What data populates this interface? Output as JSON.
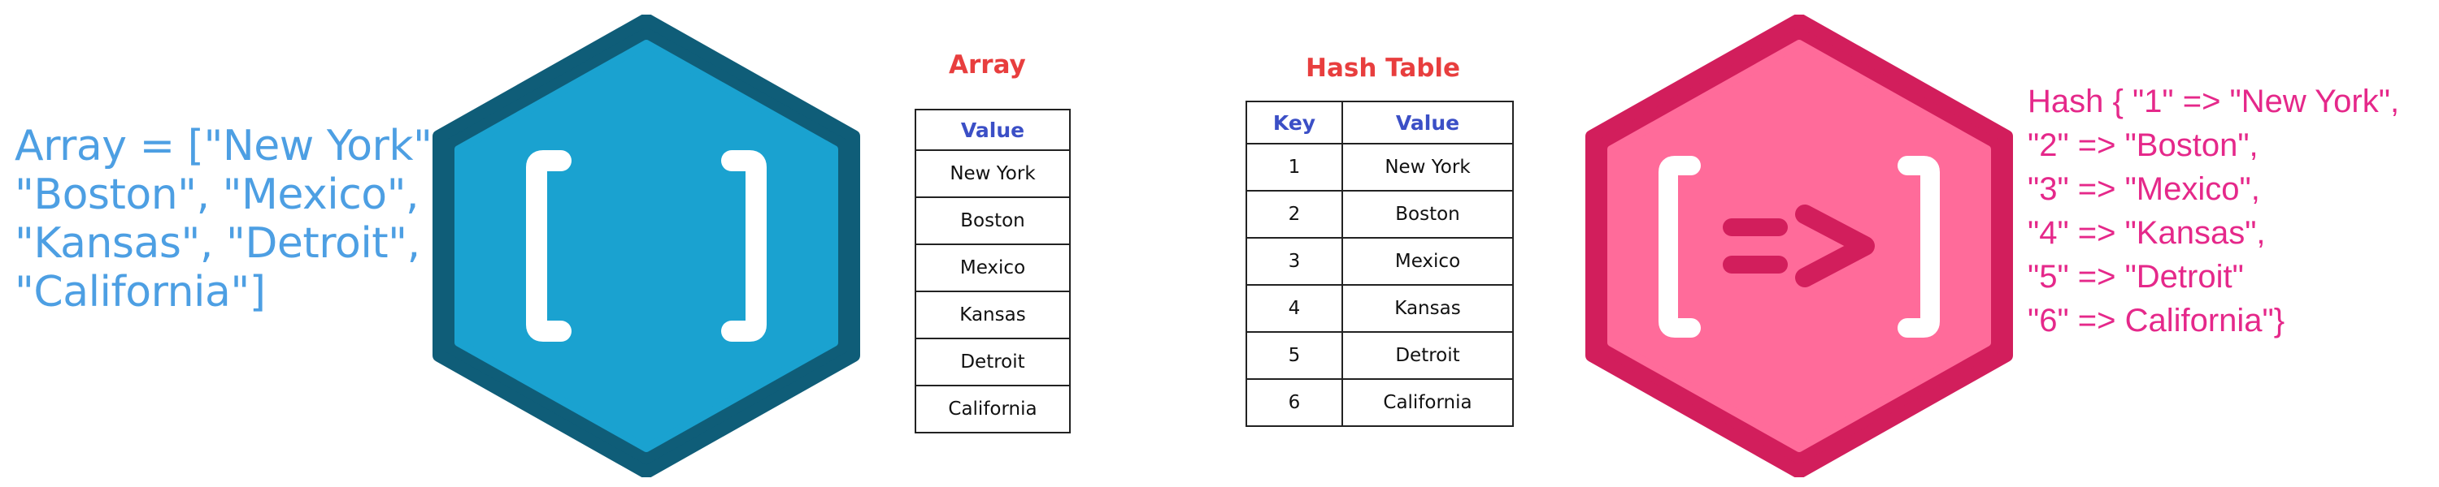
{
  "array_code": {
    "lines": [
      "Array = [\"New York\",",
      "\"Boston\", \"Mexico\",",
      "\"Kansas\", \"Detroit\",",
      "\"California\"]"
    ]
  },
  "hash_code": {
    "lines": [
      "Hash { \"1\" => \"New York\",",
      "\"2\" => \"Boston\",",
      "\"3\" => \"Mexico\",",
      "\"4\" => \"Kansas\",",
      "\"5\" => \"Detroit\"",
      "\"6\" => California\"}"
    ]
  },
  "array_icon": {
    "name": "array-brackets-icon",
    "symbol": "[ ]",
    "fill": "#1aa2d0",
    "border": "#0f5d78"
  },
  "hash_icon": {
    "name": "hash-brackets-icon",
    "symbol": "[=>]",
    "fill": "#ff6b9a",
    "border": "#d21e5c"
  },
  "array_table": {
    "title": "Array",
    "header": "Value",
    "rows": [
      "New York",
      "Boston",
      "Mexico",
      "Kansas",
      "Detroit",
      "California"
    ]
  },
  "hash_table": {
    "title": "Hash Table",
    "headers": [
      "Key",
      "Value"
    ],
    "rows": [
      {
        "key": "1",
        "value": "New York"
      },
      {
        "key": "2",
        "value": "Boston"
      },
      {
        "key": "3",
        "value": "Mexico"
      },
      {
        "key": "4",
        "value": "Kansas"
      },
      {
        "key": "5",
        "value": "Detroit"
      },
      {
        "key": "6",
        "value": "California"
      }
    ]
  },
  "colors": {
    "title_red": "#e83e3e",
    "header_blue": "#3b4fc6",
    "array_text_blue": "#4d9fe3",
    "hash_text_pink": "#e5288a"
  }
}
